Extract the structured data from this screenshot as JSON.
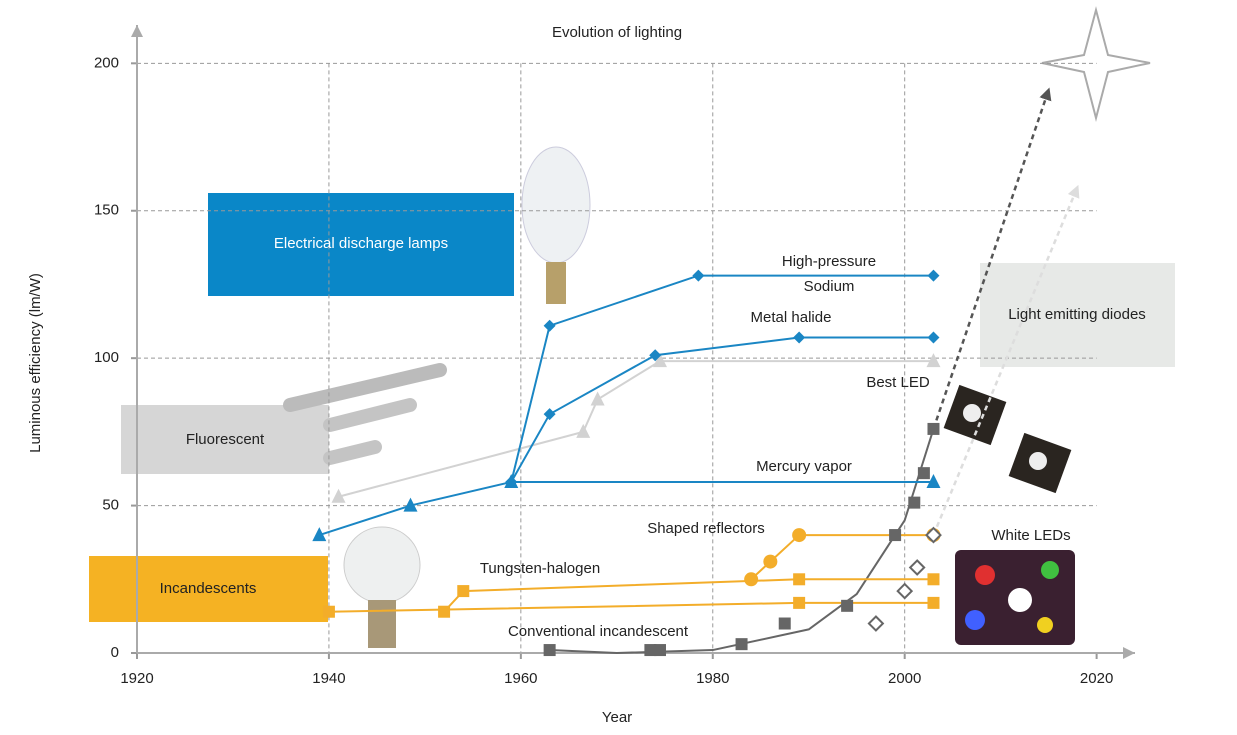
{
  "chart_data": {
    "type": "line",
    "title": "Evolution of lighting",
    "x_label": "Year",
    "y_label": "Luminous efficiency (lm/W)",
    "xlim": [
      1920,
      2024
    ],
    "ylim": [
      0,
      213
    ],
    "xticks": [
      1920,
      1940,
      1960,
      1980,
      2000,
      2020
    ],
    "yticks": [
      0,
      50,
      100,
      150,
      200
    ],
    "grid": true,
    "series": [
      {
        "color": "#f3ad2a",
        "marker": "square",
        "x": [
          1940,
          1989,
          2003
        ],
        "values": [
          14,
          17,
          17
        ]
      },
      {
        "color": "#f3ad2a",
        "marker": "square",
        "x": [
          1952,
          1954,
          1989,
          2003
        ],
        "values": [
          14,
          21,
          25,
          25
        ]
      },
      {
        "color": "#f3ad2a",
        "marker": "circle",
        "x": [
          1984,
          1986,
          1989,
          2003
        ],
        "values": [
          25,
          31,
          40,
          40
        ]
      },
      {
        "color": "#d2d2d2",
        "marker": "triangle",
        "x": [
          1941,
          1966.5,
          1968,
          1974.5,
          2003
        ],
        "values": [
          53,
          75,
          86,
          99,
          99
        ]
      },
      {
        "color": "#1a86c4",
        "marker": "triangle",
        "x": [
          1939,
          1948.5,
          1959,
          2003
        ],
        "values": [
          40,
          50,
          58,
          58
        ]
      },
      {
        "color": "#1a86c4",
        "marker": "diamond",
        "x": [
          1959,
          1963,
          1974,
          1989,
          2003
        ],
        "values": [
          58,
          81,
          101,
          107,
          107
        ]
      },
      {
        "color": "#1a86c4",
        "marker": "diamond",
        "x": [
          1959,
          1963,
          1978.5,
          2003
        ],
        "values": [
          58,
          111,
          128,
          128
        ]
      },
      {
        "color": "#666666",
        "marker": "square",
        "line": false,
        "x": [
          1963,
          1973.5,
          1974.5,
          1983,
          1987.5,
          1994,
          1999,
          2001,
          2002,
          2003
        ],
        "values": [
          1,
          1,
          1,
          3,
          10,
          16,
          40,
          51,
          61,
          76
        ]
      },
      {
        "color": "#666666",
        "marker": "diamond-open",
        "line": false,
        "x": [
          1997,
          2000,
          2001.3,
          2003
        ],
        "values": [
          10,
          21,
          29,
          40
        ]
      }
    ],
    "trend": {
      "color": "#666666",
      "x": [
        1963,
        1970,
        1980,
        1990,
        1995,
        2000,
        2003
      ],
      "values": [
        1,
        0,
        1,
        8,
        20,
        45,
        76
      ]
    },
    "projections": [
      {
        "color": "#555555",
        "x": [
          2003,
          2015
        ],
        "values": [
          76,
          191
        ]
      },
      {
        "color": "#dddddd",
        "x": [
          2003,
          2018
        ],
        "values": [
          40,
          158
        ]
      }
    ],
    "annotations": [
      "High-pressure",
      "Sodium",
      "Metal halide",
      "Mercury vapor",
      "Best LED",
      "Shaped reflectors",
      "Tungsten-halogen",
      "White LEDs",
      "Conventional incandescent"
    ],
    "boxes": [
      "Electrical discharge lamps",
      "Fluorescent",
      "Incandescents",
      "Light emitting diodes"
    ]
  }
}
